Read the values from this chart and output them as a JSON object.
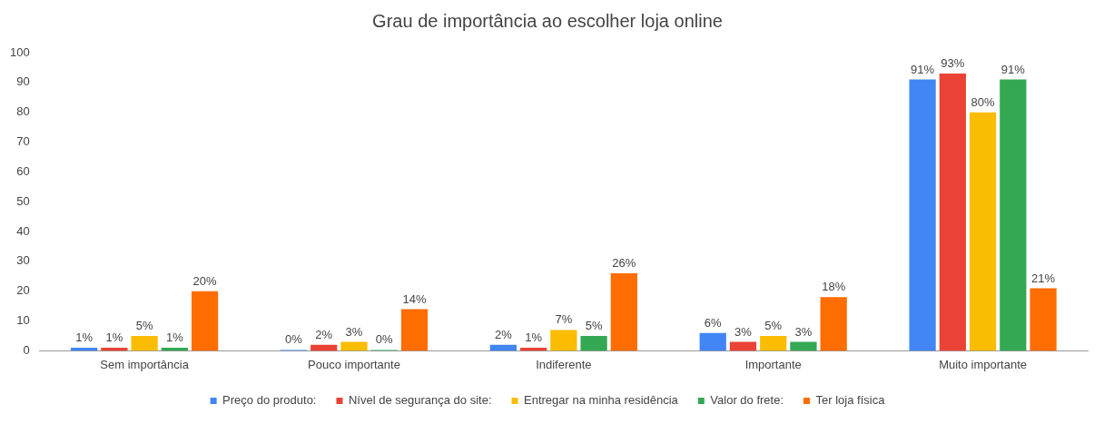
{
  "chart_data": {
    "type": "bar",
    "title": "Grau de importância ao escolher loja online",
    "categories": [
      "Sem importância",
      "Pouco importante",
      "Indiferente",
      "Importante",
      "Muito importante"
    ],
    "series": [
      {
        "name": "Preço do produto:",
        "color": "#4285f4",
        "values": [
          1,
          0,
          2,
          6,
          91
        ],
        "value_labels": [
          "1%",
          "0%",
          "2%",
          "6%",
          "91%"
        ]
      },
      {
        "name": "Nível de segurança do site:",
        "color": "#ea4335",
        "values": [
          1,
          2,
          1,
          3,
          93
        ],
        "value_labels": [
          "1%",
          "2%",
          "1%",
          "3%",
          "93%"
        ]
      },
      {
        "name": "Entregar na minha residência",
        "color": "#fbbc04",
        "values": [
          5,
          3,
          7,
          5,
          80
        ],
        "value_labels": [
          "5%",
          "3%",
          "7%",
          "5%",
          "80%"
        ]
      },
      {
        "name": "Valor do frete:",
        "color": "#34a853",
        "values": [
          1,
          0,
          5,
          3,
          91
        ],
        "value_labels": [
          "1%",
          "0%",
          "5%",
          "3%",
          "91%"
        ]
      },
      {
        "name": "Ter loja física",
        "color": "#ff6d01",
        "values": [
          20,
          14,
          26,
          18,
          21
        ],
        "value_labels": [
          "20%",
          "14%",
          "26%",
          "18%",
          "21%"
        ]
      }
    ],
    "ylim": [
      0,
      100
    ],
    "yticks": [
      0,
      10,
      20,
      30,
      40,
      50,
      60,
      70,
      80,
      90,
      100
    ],
    "grid": false,
    "legend": "bottom"
  }
}
